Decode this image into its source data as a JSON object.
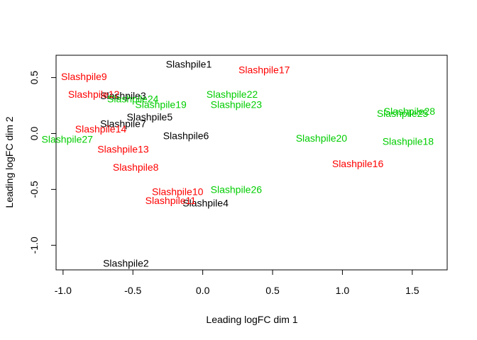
{
  "chart_data": {
    "type": "scatter",
    "title": "",
    "xlabel": "Leading logFC dim 1",
    "ylabel": "Leading logFC dim 2",
    "xlim": [
      -1.05,
      1.75
    ],
    "ylim": [
      -1.22,
      0.7
    ],
    "xticks": [
      -1.0,
      -0.5,
      0.0,
      0.5,
      1.0,
      1.5
    ],
    "xtick_labels": [
      "-1.0",
      "-0.5",
      "0.0",
      "0.5",
      "1.0",
      "1.5"
    ],
    "yticks": [
      -1.0,
      -0.5,
      0.0,
      0.5
    ],
    "ytick_labels": [
      "-1.0",
      "-0.5",
      "0.0",
      "0.5"
    ],
    "grid": false,
    "colors": {
      "black": "#000000",
      "red": "#ff0000",
      "green": "#00cd00"
    },
    "points": [
      {
        "label": "Slashpile1",
        "x": -0.1,
        "y": 0.62,
        "color": "black"
      },
      {
        "label": "Slashpile2",
        "x": -0.55,
        "y": -1.16,
        "color": "black"
      },
      {
        "label": "Slashpile3",
        "x": -0.57,
        "y": 0.34,
        "color": "black"
      },
      {
        "label": "Slashpile4",
        "x": 0.02,
        "y": -0.62,
        "color": "black"
      },
      {
        "label": "Slashpile5",
        "x": -0.38,
        "y": 0.15,
        "color": "black"
      },
      {
        "label": "Slashpile6",
        "x": -0.12,
        "y": -0.02,
        "color": "black"
      },
      {
        "label": "Slashpile7",
        "x": -0.57,
        "y": 0.09,
        "color": "black"
      },
      {
        "label": "Slashpile8",
        "x": -0.48,
        "y": -0.3,
        "color": "red"
      },
      {
        "label": "Slashpile9",
        "x": -0.85,
        "y": 0.51,
        "color": "red"
      },
      {
        "label": "Slashpile10",
        "x": -0.18,
        "y": -0.52,
        "color": "red"
      },
      {
        "label": "Slashpile11",
        "x": -0.23,
        "y": -0.6,
        "color": "red"
      },
      {
        "label": "Slashpile12",
        "x": -0.78,
        "y": 0.35,
        "color": "red"
      },
      {
        "label": "Slashpile13",
        "x": -0.57,
        "y": -0.14,
        "color": "red"
      },
      {
        "label": "Slashpile14",
        "x": -0.73,
        "y": 0.04,
        "color": "red"
      },
      {
        "label": "Slashpile16",
        "x": 1.11,
        "y": -0.27,
        "color": "red"
      },
      {
        "label": "Slashpile17",
        "x": 0.44,
        "y": 0.57,
        "color": "red"
      },
      {
        "label": "Slashpile18",
        "x": 1.47,
        "y": -0.07,
        "color": "green"
      },
      {
        "label": "Slashpile19",
        "x": -0.3,
        "y": 0.26,
        "color": "green"
      },
      {
        "label": "Slashpile20",
        "x": 0.85,
        "y": -0.04,
        "color": "green"
      },
      {
        "label": "Slashpile22",
        "x": 0.21,
        "y": 0.35,
        "color": "green"
      },
      {
        "label": "Slashpile23",
        "x": 0.24,
        "y": 0.26,
        "color": "green"
      },
      {
        "label": "Slashpile24",
        "x": -0.5,
        "y": 0.31,
        "color": "green"
      },
      {
        "label": "Slashpile25",
        "x": 1.43,
        "y": 0.18,
        "color": "green"
      },
      {
        "label": "Slashpile26",
        "x": 0.24,
        "y": -0.5,
        "color": "green"
      },
      {
        "label": "Slashpile27",
        "x": -0.97,
        "y": -0.05,
        "color": "green"
      },
      {
        "label": "Slashpile28",
        "x": 1.48,
        "y": 0.2,
        "color": "green"
      }
    ]
  }
}
